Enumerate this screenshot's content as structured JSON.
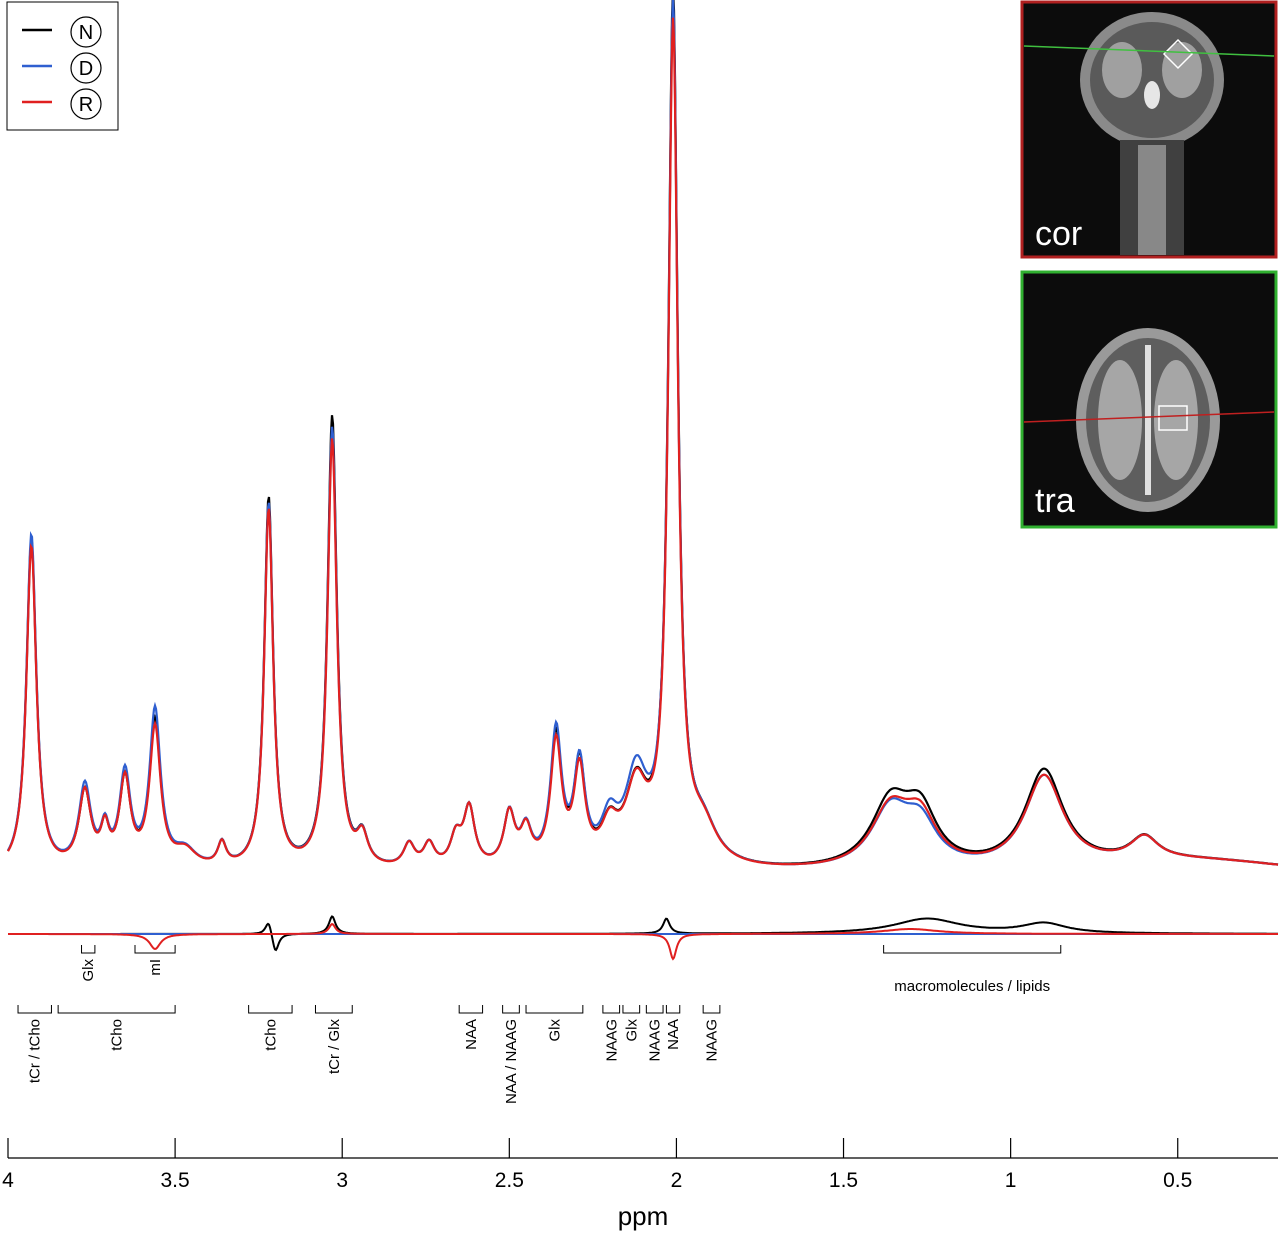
{
  "chart_data": {
    "type": "line",
    "xlabel": "ppm",
    "xlim": [
      4.0,
      0.2
    ],
    "xticks": [
      4,
      3.5,
      3,
      2.5,
      2,
      1.5,
      1,
      0.5
    ],
    "xtick_labels": [
      "4",
      "3.5",
      "3",
      "2.5",
      "2",
      "1.5",
      "1",
      "0.5"
    ],
    "legend": {
      "placement": "top-left",
      "entries": [
        {
          "label": "N",
          "color": "#000000"
        },
        {
          "label": "D",
          "color": "#2f5fd0"
        },
        {
          "label": "R",
          "color": "#e02020"
        }
      ]
    },
    "series": [
      {
        "name": "N",
        "color": "#000000",
        "peaks": [
          {
            "ppm": 3.93,
            "h": 0.57,
            "w": 0.018
          },
          {
            "ppm": 3.77,
            "h": 0.13,
            "w": 0.022
          },
          {
            "ppm": 3.71,
            "h": 0.06,
            "w": 0.015
          },
          {
            "ppm": 3.65,
            "h": 0.15,
            "w": 0.02
          },
          {
            "ppm": 3.56,
            "h": 0.25,
            "w": 0.02
          },
          {
            "ppm": 3.47,
            "h": 0.03,
            "w": 0.04
          },
          {
            "ppm": 3.36,
            "h": 0.04,
            "w": 0.015
          },
          {
            "ppm": 3.22,
            "h": 0.64,
            "w": 0.016
          },
          {
            "ppm": 3.03,
            "h": 0.78,
            "w": 0.017
          },
          {
            "ppm": 2.94,
            "h": 0.05,
            "w": 0.02
          },
          {
            "ppm": 2.8,
            "h": 0.04,
            "w": 0.02
          },
          {
            "ppm": 2.74,
            "h": 0.04,
            "w": 0.02
          },
          {
            "ppm": 2.66,
            "h": 0.05,
            "w": 0.02
          },
          {
            "ppm": 2.62,
            "h": 0.1,
            "w": 0.02
          },
          {
            "ppm": 2.5,
            "h": 0.09,
            "w": 0.02
          },
          {
            "ppm": 2.45,
            "h": 0.06,
            "w": 0.02
          },
          {
            "ppm": 2.36,
            "h": 0.22,
            "w": 0.02
          },
          {
            "ppm": 2.29,
            "h": 0.17,
            "w": 0.02
          },
          {
            "ppm": 2.2,
            "h": 0.06,
            "w": 0.03
          },
          {
            "ppm": 2.12,
            "h": 0.13,
            "w": 0.04
          },
          {
            "ppm": 2.01,
            "h": 1.49,
            "w": 0.017
          },
          {
            "ppm": 1.92,
            "h": 0.06,
            "w": 0.05
          },
          {
            "ppm": 1.36,
            "h": 0.11,
            "w": 0.07
          },
          {
            "ppm": 1.27,
            "h": 0.09,
            "w": 0.06
          },
          {
            "ppm": 0.9,
            "h": 0.17,
            "w": 0.07
          },
          {
            "ppm": 0.6,
            "h": 0.04,
            "w": 0.05
          }
        ]
      },
      {
        "name": "D",
        "color": "#2f5fd0",
        "peaks": [
          {
            "ppm": 3.93,
            "h": 0.58,
            "w": 0.018
          },
          {
            "ppm": 3.77,
            "h": 0.14,
            "w": 0.022
          },
          {
            "ppm": 3.71,
            "h": 0.06,
            "w": 0.015
          },
          {
            "ppm": 3.65,
            "h": 0.16,
            "w": 0.02
          },
          {
            "ppm": 3.56,
            "h": 0.27,
            "w": 0.02
          },
          {
            "ppm": 3.47,
            "h": 0.03,
            "w": 0.04
          },
          {
            "ppm": 3.36,
            "h": 0.04,
            "w": 0.015
          },
          {
            "ppm": 3.22,
            "h": 0.63,
            "w": 0.016
          },
          {
            "ppm": 3.03,
            "h": 0.76,
            "w": 0.017
          },
          {
            "ppm": 2.94,
            "h": 0.05,
            "w": 0.02
          },
          {
            "ppm": 2.8,
            "h": 0.04,
            "w": 0.02
          },
          {
            "ppm": 2.74,
            "h": 0.04,
            "w": 0.02
          },
          {
            "ppm": 2.66,
            "h": 0.05,
            "w": 0.02
          },
          {
            "ppm": 2.62,
            "h": 0.1,
            "w": 0.02
          },
          {
            "ppm": 2.5,
            "h": 0.09,
            "w": 0.02
          },
          {
            "ppm": 2.45,
            "h": 0.06,
            "w": 0.02
          },
          {
            "ppm": 2.36,
            "h": 0.23,
            "w": 0.02
          },
          {
            "ppm": 2.29,
            "h": 0.17,
            "w": 0.02
          },
          {
            "ppm": 2.2,
            "h": 0.07,
            "w": 0.03
          },
          {
            "ppm": 2.12,
            "h": 0.15,
            "w": 0.04
          },
          {
            "ppm": 2.01,
            "h": 1.47,
            "w": 0.017
          },
          {
            "ppm": 1.92,
            "h": 0.06,
            "w": 0.05
          },
          {
            "ppm": 1.36,
            "h": 0.1,
            "w": 0.07
          },
          {
            "ppm": 1.27,
            "h": 0.07,
            "w": 0.06
          },
          {
            "ppm": 0.9,
            "h": 0.16,
            "w": 0.07
          },
          {
            "ppm": 0.6,
            "h": 0.04,
            "w": 0.05
          }
        ]
      },
      {
        "name": "R",
        "color": "#e02020",
        "peaks": [
          {
            "ppm": 3.93,
            "h": 0.56,
            "w": 0.018
          },
          {
            "ppm": 3.77,
            "h": 0.13,
            "w": 0.022
          },
          {
            "ppm": 3.71,
            "h": 0.06,
            "w": 0.015
          },
          {
            "ppm": 3.65,
            "h": 0.15,
            "w": 0.02
          },
          {
            "ppm": 3.56,
            "h": 0.24,
            "w": 0.02
          },
          {
            "ppm": 3.47,
            "h": 0.03,
            "w": 0.04
          },
          {
            "ppm": 3.36,
            "h": 0.04,
            "w": 0.015
          },
          {
            "ppm": 3.22,
            "h": 0.62,
            "w": 0.016
          },
          {
            "ppm": 3.03,
            "h": 0.74,
            "w": 0.017
          },
          {
            "ppm": 2.94,
            "h": 0.05,
            "w": 0.02
          },
          {
            "ppm": 2.8,
            "h": 0.04,
            "w": 0.02
          },
          {
            "ppm": 2.74,
            "h": 0.04,
            "w": 0.02
          },
          {
            "ppm": 2.66,
            "h": 0.05,
            "w": 0.02
          },
          {
            "ppm": 2.62,
            "h": 0.1,
            "w": 0.02
          },
          {
            "ppm": 2.5,
            "h": 0.09,
            "w": 0.02
          },
          {
            "ppm": 2.45,
            "h": 0.06,
            "w": 0.02
          },
          {
            "ppm": 2.36,
            "h": 0.21,
            "w": 0.02
          },
          {
            "ppm": 2.29,
            "h": 0.16,
            "w": 0.02
          },
          {
            "ppm": 2.2,
            "h": 0.06,
            "w": 0.03
          },
          {
            "ppm": 2.12,
            "h": 0.13,
            "w": 0.04
          },
          {
            "ppm": 2.01,
            "h": 1.44,
            "w": 0.017
          },
          {
            "ppm": 1.92,
            "h": 0.06,
            "w": 0.05
          },
          {
            "ppm": 1.36,
            "h": 0.1,
            "w": 0.07
          },
          {
            "ppm": 1.27,
            "h": 0.08,
            "w": 0.06
          },
          {
            "ppm": 0.9,
            "h": 0.16,
            "w": 0.07
          },
          {
            "ppm": 0.6,
            "h": 0.04,
            "w": 0.05
          }
        ]
      }
    ],
    "residuals": [
      {
        "name": "N",
        "color": "#000000",
        "bumps": [
          {
            "ppm": 3.22,
            "h": 0.03,
            "w": 0.012
          },
          {
            "ppm": 3.2,
            "h": -0.04,
            "w": 0.012
          },
          {
            "ppm": 3.03,
            "h": 0.035,
            "w": 0.012
          },
          {
            "ppm": 2.03,
            "h": 0.03,
            "w": 0.012
          },
          {
            "ppm": 1.25,
            "h": 0.03,
            "w": 0.12
          },
          {
            "ppm": 0.9,
            "h": 0.02,
            "w": 0.08
          }
        ]
      },
      {
        "name": "D",
        "color": "#2f5fd0",
        "bumps": []
      },
      {
        "name": "R",
        "color": "#e02020",
        "bumps": [
          {
            "ppm": 3.56,
            "h": -0.03,
            "w": 0.02
          },
          {
            "ppm": 3.03,
            "h": 0.02,
            "w": 0.012
          },
          {
            "ppm": 2.01,
            "h": -0.05,
            "w": 0.012
          },
          {
            "ppm": 1.3,
            "h": 0.01,
            "w": 0.1
          }
        ]
      }
    ],
    "annotations": [
      {
        "text": "Glx",
        "from": 3.78,
        "to": 3.74,
        "row": "upper"
      },
      {
        "text": "mI",
        "from": 3.62,
        "to": 3.5,
        "row": "upper"
      },
      {
        "text": "macromolecules / lipids",
        "from": 1.38,
        "to": 0.85,
        "row": "upper"
      },
      {
        "text": "tCr / tCho",
        "from": 3.97,
        "to": 3.87,
        "row": "lower"
      },
      {
        "text": "tCho",
        "from": 3.85,
        "to": 3.5,
        "row": "lower"
      },
      {
        "text": "tCho",
        "from": 3.28,
        "to": 3.15,
        "row": "lower"
      },
      {
        "text": "tCr / Glx",
        "from": 3.08,
        "to": 2.97,
        "row": "lower"
      },
      {
        "text": "NAA",
        "from": 2.65,
        "to": 2.58,
        "row": "lower"
      },
      {
        "text": "NAA / NAAG",
        "from": 2.52,
        "to": 2.47,
        "row": "lower"
      },
      {
        "text": "Glx",
        "from": 2.45,
        "to": 2.28,
        "row": "lower"
      },
      {
        "text": "NAAG",
        "from": 2.22,
        "to": 2.17,
        "row": "lower"
      },
      {
        "text": "Glx",
        "from": 2.16,
        "to": 2.11,
        "row": "lower"
      },
      {
        "text": "NAAG",
        "from": 2.09,
        "to": 2.04,
        "row": "lower"
      },
      {
        "text": "NAA",
        "from": 2.03,
        "to": 1.99,
        "row": "lower"
      },
      {
        "text": "NAAG",
        "from": 1.92,
        "to": 1.87,
        "row": "lower"
      }
    ],
    "insets": [
      {
        "label": "cor",
        "border_color": "#b02020",
        "line_color": "#40c040"
      },
      {
        "label": "tra",
        "border_color": "#30b030",
        "line_color": "#c02020"
      }
    ]
  }
}
